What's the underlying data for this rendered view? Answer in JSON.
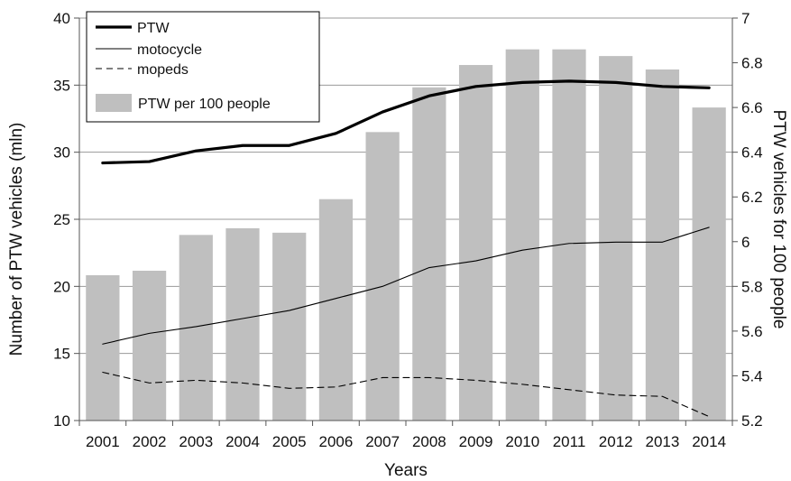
{
  "chart_data": {
    "type": "bar+line",
    "categories": [
      "2001",
      "2002",
      "2003",
      "2004",
      "2005",
      "2006",
      "2007",
      "2008",
      "2009",
      "2010",
      "2011",
      "2012",
      "2013",
      "2014"
    ],
    "xlabel": "Years",
    "ylabel": "Number of PTW vehicles (mln)",
    "ylabel_right": "PTW vehicles for 100 people",
    "ylim": [
      10,
      40
    ],
    "ylim_right": [
      5.2,
      7.0
    ],
    "yticks": [
      10,
      15,
      20,
      25,
      30,
      35,
      40
    ],
    "yticks_right": [
      "5.2",
      "5.4",
      "5.6",
      "5.8",
      "6",
      "6.2",
      "6.4",
      "6.6",
      "6.8",
      "7"
    ],
    "grid": "horizontal",
    "legend_position": "top-left",
    "bars": {
      "name": "PTW per 100 people",
      "axis": "right",
      "color": "#bfbfbf",
      "values": [
        5.85,
        5.87,
        6.03,
        6.06,
        6.04,
        6.19,
        6.49,
        6.69,
        6.79,
        6.86,
        6.86,
        6.83,
        6.77,
        6.6
      ]
    },
    "series": [
      {
        "name": "PTW",
        "axis": "left",
        "color": "#000000",
        "style": "solid-thick",
        "values": [
          29.2,
          29.3,
          30.1,
          30.5,
          30.5,
          31.4,
          33.0,
          34.2,
          34.9,
          35.2,
          35.3,
          35.2,
          34.9,
          34.8
        ]
      },
      {
        "name": "motocycle",
        "axis": "left",
        "color": "#000000",
        "style": "solid-thin",
        "values": [
          15.7,
          16.5,
          17.0,
          17.6,
          18.2,
          19.1,
          20.0,
          21.4,
          21.9,
          22.7,
          23.2,
          23.3,
          23.3,
          24.4
        ]
      },
      {
        "name": "mopeds",
        "axis": "left",
        "color": "#000000",
        "style": "dashed",
        "values": [
          13.6,
          12.8,
          13.0,
          12.8,
          12.4,
          12.5,
          13.2,
          13.2,
          13.0,
          12.7,
          12.3,
          11.9,
          11.8,
          10.3
        ]
      }
    ]
  }
}
